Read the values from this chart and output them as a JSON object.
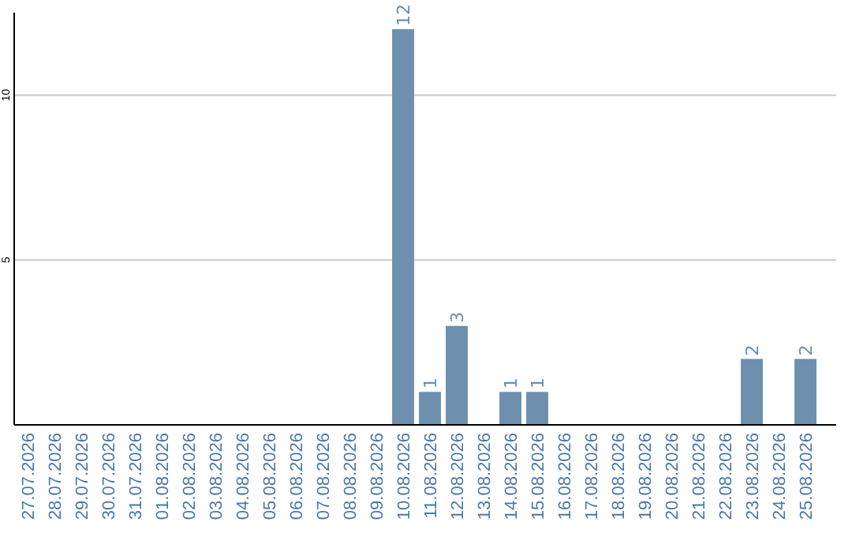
{
  "chart_data": {
    "type": "bar",
    "categories": [
      "27.07.2026",
      "28.07.2026",
      "29.07.2026",
      "30.07.2026",
      "31.07.2026",
      "01.08.2026",
      "02.08.2026",
      "03.08.2026",
      "04.08.2026",
      "05.08.2026",
      "06.08.2026",
      "07.08.2026",
      "08.08.2026",
      "09.08.2026",
      "10.08.2026",
      "11.08.2026",
      "12.08.2026",
      "13.08.2026",
      "14.08.2026",
      "15.08.2026",
      "16.08.2026",
      "17.08.2026",
      "18.08.2026",
      "19.08.2026",
      "20.08.2026",
      "21.08.2026",
      "22.08.2026",
      "23.08.2026",
      "24.08.2026",
      "25.08.2026"
    ],
    "values": [
      0,
      0,
      0,
      0,
      0,
      0,
      0,
      0,
      0,
      0,
      0,
      0,
      0,
      0,
      12,
      1,
      3,
      0,
      1,
      1,
      0,
      0,
      0,
      0,
      0,
      0,
      0,
      2,
      0,
      2
    ],
    "value_labels": [
      null,
      null,
      null,
      null,
      null,
      null,
      null,
      null,
      null,
      null,
      null,
      null,
      null,
      null,
      "12",
      "1",
      "3",
      null,
      "1",
      "1",
      null,
      null,
      null,
      null,
      null,
      null,
      null,
      "2",
      null,
      "2"
    ],
    "color": "#6f8fae",
    "ylim": [
      0,
      12.5
    ],
    "yticks": [
      5,
      10
    ],
    "grid": "y"
  }
}
